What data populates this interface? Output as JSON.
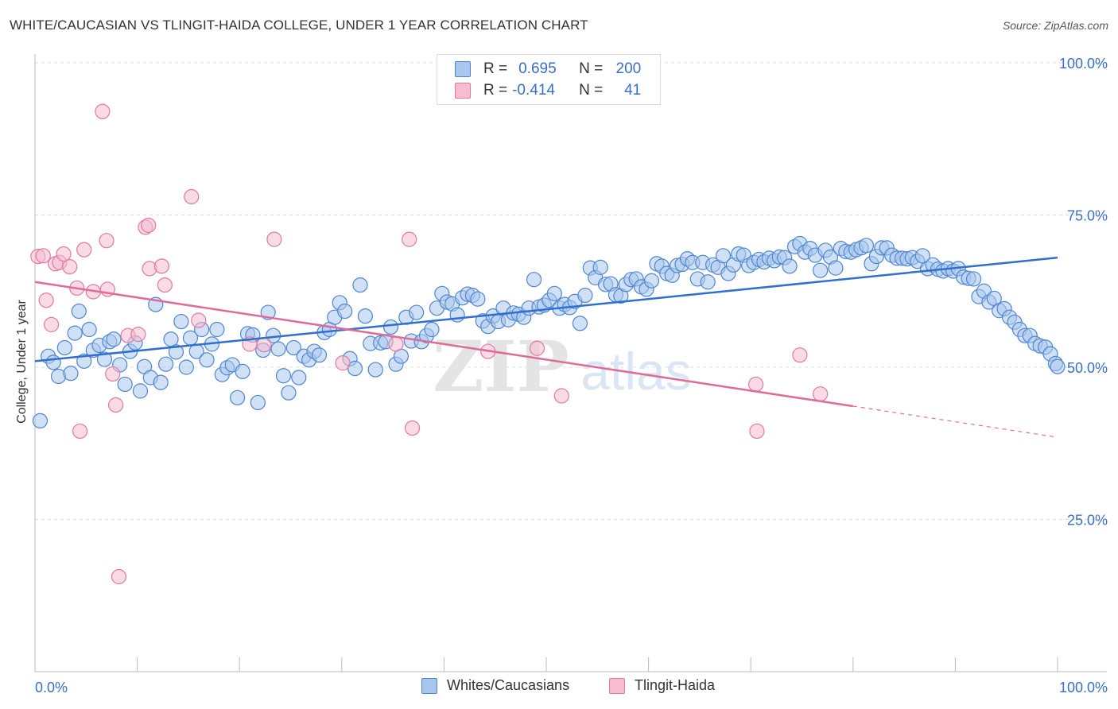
{
  "title": "WHITE/CAUCASIAN VS TLINGIT-HAIDA COLLEGE, UNDER 1 YEAR CORRELATION CHART",
  "source": "Source: ZipAtlas.com",
  "watermark": {
    "zip": "ZIP",
    "atlas": "atlas"
  },
  "legend": {
    "rows": [
      {
        "r_label": "R =",
        "r_value": "0.695",
        "n_label": "N =",
        "n_value": "200",
        "color": "#a9c6ec",
        "stroke": "#4f86cf"
      },
      {
        "r_label": "R =",
        "r_value": "-0.414",
        "n_label": "N =",
        "n_value": "41",
        "color": "#f6bcd0",
        "stroke": "#e07aa0"
      }
    ]
  },
  "bottom_legend": {
    "white": "Whites/Caucasians",
    "tlingit": "Tlingit-Haida"
  },
  "chart_data": {
    "type": "scatter",
    "title": "WHITE/CAUCASIAN VS TLINGIT-HAIDA COLLEGE, UNDER 1 YEAR CORRELATION CHART",
    "xlabel": "",
    "ylabel": "College, Under 1 year",
    "xlim": [
      0,
      100
    ],
    "ylim": [
      0,
      100
    ],
    "x_tick_labels": [
      "0.0%",
      "100.0%"
    ],
    "y_tick_labels": [
      "25.0%",
      "50.0%",
      "75.0%",
      "100.0%"
    ],
    "y_ticks": [
      25,
      50,
      75,
      100
    ],
    "grid": true,
    "legend_placement": "top-center",
    "series": [
      {
        "name": "Whites/Caucasians",
        "color": "#a9c6ec",
        "stroke": "#4f86cf",
        "trend": {
          "x": [
            0,
            100
          ],
          "y": [
            51,
            68
          ],
          "dashed_from": null
        },
        "points": [
          [
            0.5,
            41.2
          ],
          [
            1.3,
            51.8
          ],
          [
            1.8,
            50.8
          ],
          [
            2.3,
            48.5
          ],
          [
            2.9,
            53.2
          ],
          [
            3.5,
            49.0
          ],
          [
            3.9,
            55.6
          ],
          [
            4.3,
            59.2
          ],
          [
            4.8,
            51.0
          ],
          [
            5.3,
            56.2
          ],
          [
            5.7,
            52.8
          ],
          [
            6.3,
            53.6
          ],
          [
            6.8,
            51.3
          ],
          [
            7.3,
            54.2
          ],
          [
            7.7,
            54.6
          ],
          [
            8.3,
            50.4
          ],
          [
            8.8,
            47.2
          ],
          [
            9.3,
            52.6
          ],
          [
            9.8,
            54.0
          ],
          [
            10.3,
            46.1
          ],
          [
            10.7,
            50.1
          ],
          [
            11.3,
            48.3
          ],
          [
            11.8,
            60.3
          ],
          [
            12.3,
            47.5
          ],
          [
            12.8,
            50.5
          ],
          [
            13.3,
            54.6
          ],
          [
            13.8,
            52.5
          ],
          [
            14.3,
            57.5
          ],
          [
            14.8,
            50.0
          ],
          [
            15.2,
            54.8
          ],
          [
            15.8,
            52.6
          ],
          [
            16.3,
            56.2
          ],
          [
            16.8,
            51.2
          ],
          [
            17.3,
            53.8
          ],
          [
            17.8,
            56.2
          ],
          [
            18.3,
            48.8
          ],
          [
            18.8,
            49.9
          ],
          [
            19.3,
            50.4
          ],
          [
            19.8,
            45.0
          ],
          [
            20.3,
            49.3
          ],
          [
            20.8,
            55.5
          ],
          [
            21.3,
            55.3
          ],
          [
            21.8,
            44.2
          ],
          [
            22.3,
            52.8
          ],
          [
            22.8,
            59.0
          ],
          [
            23.3,
            55.2
          ],
          [
            23.8,
            53.0
          ],
          [
            24.3,
            48.6
          ],
          [
            24.8,
            45.8
          ],
          [
            25.3,
            53.2
          ],
          [
            25.8,
            48.3
          ],
          [
            26.3,
            51.8
          ],
          [
            26.8,
            51.2
          ],
          [
            27.3,
            52.6
          ],
          [
            27.8,
            52.0
          ],
          [
            28.3,
            55.7
          ],
          [
            28.8,
            56.2
          ],
          [
            29.3,
            58.2
          ],
          [
            29.8,
            60.6
          ],
          [
            30.3,
            59.2
          ],
          [
            30.8,
            51.4
          ],
          [
            31.3,
            49.8
          ],
          [
            31.8,
            63.5
          ],
          [
            32.3,
            58.4
          ],
          [
            32.8,
            53.9
          ],
          [
            33.3,
            49.6
          ],
          [
            33.8,
            54.0
          ],
          [
            34.3,
            54.2
          ],
          [
            34.8,
            56.6
          ],
          [
            35.3,
            50.5
          ],
          [
            35.8,
            51.8
          ],
          [
            36.3,
            58.2
          ],
          [
            36.8,
            54.3
          ],
          [
            37.3,
            59.0
          ],
          [
            37.8,
            54.2
          ],
          [
            38.3,
            55.2
          ],
          [
            38.8,
            56.2
          ],
          [
            39.3,
            59.7
          ],
          [
            39.8,
            62.1
          ],
          [
            40.3,
            60.7
          ],
          [
            40.8,
            60.4
          ],
          [
            41.3,
            58.6
          ],
          [
            41.8,
            61.4
          ],
          [
            42.3,
            62.0
          ],
          [
            42.8,
            61.8
          ],
          [
            43.3,
            61.2
          ],
          [
            43.8,
            57.6
          ],
          [
            44.3,
            56.7
          ],
          [
            44.8,
            58.4
          ],
          [
            45.3,
            57.5
          ],
          [
            45.8,
            59.7
          ],
          [
            46.3,
            57.8
          ],
          [
            46.8,
            58.9
          ],
          [
            47.3,
            58.7
          ],
          [
            47.8,
            58.2
          ],
          [
            48.3,
            59.7
          ],
          [
            48.8,
            64.4
          ],
          [
            49.3,
            59.9
          ],
          [
            49.8,
            60.2
          ],
          [
            50.3,
            61.0
          ],
          [
            50.8,
            62.1
          ],
          [
            51.3,
            59.7
          ],
          [
            51.8,
            60.3
          ],
          [
            52.3,
            59.8
          ],
          [
            52.8,
            60.8
          ],
          [
            53.3,
            57.2
          ],
          [
            53.8,
            61.8
          ],
          [
            54.3,
            66.3
          ],
          [
            54.8,
            64.7
          ],
          [
            55.3,
            66.4
          ],
          [
            55.8,
            63.6
          ],
          [
            56.3,
            63.7
          ],
          [
            56.8,
            61.9
          ],
          [
            57.3,
            61.7
          ],
          [
            57.8,
            63.6
          ],
          [
            58.3,
            64.4
          ],
          [
            58.8,
            64.5
          ],
          [
            59.3,
            63.2
          ],
          [
            59.8,
            62.8
          ],
          [
            60.3,
            64.2
          ],
          [
            60.8,
            67.0
          ],
          [
            61.3,
            66.6
          ],
          [
            61.8,
            65.4
          ],
          [
            62.3,
            65.1
          ],
          [
            62.8,
            66.7
          ],
          [
            63.3,
            66.9
          ],
          [
            63.8,
            67.8
          ],
          [
            64.3,
            67.2
          ],
          [
            64.8,
            64.5
          ],
          [
            65.3,
            67.2
          ],
          [
            65.8,
            64.0
          ],
          [
            66.3,
            66.8
          ],
          [
            66.8,
            66.4
          ],
          [
            67.3,
            68.3
          ],
          [
            67.8,
            65.4
          ],
          [
            68.3,
            66.8
          ],
          [
            68.8,
            68.6
          ],
          [
            69.3,
            68.4
          ],
          [
            69.8,
            66.7
          ],
          [
            70.3,
            67.2
          ],
          [
            70.8,
            67.7
          ],
          [
            71.3,
            67.3
          ],
          [
            71.8,
            67.9
          ],
          [
            72.3,
            67.5
          ],
          [
            72.8,
            68.1
          ],
          [
            73.3,
            68.0
          ],
          [
            73.8,
            66.6
          ],
          [
            74.3,
            69.8
          ],
          [
            74.8,
            70.3
          ],
          [
            75.3,
            68.9
          ],
          [
            75.8,
            69.5
          ],
          [
            76.3,
            68.4
          ],
          [
            76.8,
            65.9
          ],
          [
            77.3,
            69.2
          ],
          [
            77.8,
            68.1
          ],
          [
            78.3,
            66.3
          ],
          [
            78.8,
            69.5
          ],
          [
            79.3,
            69.0
          ],
          [
            79.8,
            68.9
          ],
          [
            80.3,
            69.3
          ],
          [
            80.8,
            69.6
          ],
          [
            81.3,
            70.0
          ],
          [
            81.8,
            67.0
          ],
          [
            82.3,
            68.2
          ],
          [
            82.8,
            69.6
          ],
          [
            83.3,
            69.6
          ],
          [
            83.8,
            68.4
          ],
          [
            84.3,
            67.9
          ],
          [
            84.8,
            67.9
          ],
          [
            85.3,
            67.8
          ],
          [
            85.8,
            68.0
          ],
          [
            86.3,
            67.4
          ],
          [
            86.8,
            68.3
          ],
          [
            87.3,
            66.2
          ],
          [
            87.8,
            66.8
          ],
          [
            88.3,
            66.1
          ],
          [
            88.8,
            65.8
          ],
          [
            89.3,
            66.2
          ],
          [
            89.8,
            65.8
          ],
          [
            90.3,
            66.2
          ],
          [
            90.8,
            64.8
          ],
          [
            91.3,
            64.6
          ],
          [
            91.8,
            64.5
          ],
          [
            92.3,
            61.6
          ],
          [
            92.8,
            62.5
          ],
          [
            93.3,
            60.7
          ],
          [
            93.8,
            61.3
          ],
          [
            94.3,
            59.3
          ],
          [
            94.8,
            59.6
          ],
          [
            95.3,
            58.2
          ],
          [
            95.8,
            57.4
          ],
          [
            96.3,
            56.2
          ],
          [
            96.8,
            55.2
          ],
          [
            97.3,
            55.2
          ],
          [
            97.8,
            53.9
          ],
          [
            98.3,
            53.5
          ],
          [
            98.8,
            53.3
          ],
          [
            99.3,
            52.2
          ],
          [
            99.8,
            50.6
          ],
          [
            100.0,
            50.1
          ]
        ]
      },
      {
        "name": "Tlingit-Haida",
        "color": "#f6bcd0",
        "stroke": "#e07aa0",
        "trend": {
          "x": [
            0,
            100
          ],
          "y": [
            64,
            38.5
          ],
          "dashed_from": 80
        },
        "points": [
          [
            0.3,
            68.2
          ],
          [
            0.8,
            68.3
          ],
          [
            1.1,
            61.0
          ],
          [
            1.6,
            57.0
          ],
          [
            2.0,
            67.0
          ],
          [
            2.4,
            67.2
          ],
          [
            2.8,
            68.6
          ],
          [
            3.4,
            66.5
          ],
          [
            4.1,
            63.0
          ],
          [
            4.4,
            39.5
          ],
          [
            4.8,
            69.3
          ],
          [
            5.7,
            62.4
          ],
          [
            6.6,
            92.0
          ],
          [
            7.0,
            70.8
          ],
          [
            7.1,
            62.8
          ],
          [
            7.6,
            48.9
          ],
          [
            7.9,
            43.8
          ],
          [
            8.2,
            15.6
          ],
          [
            9.1,
            55.2
          ],
          [
            10.1,
            55.4
          ],
          [
            10.8,
            73.0
          ],
          [
            11.1,
            73.3
          ],
          [
            11.2,
            66.2
          ],
          [
            12.4,
            66.6
          ],
          [
            12.7,
            63.5
          ],
          [
            15.3,
            78.0
          ],
          [
            16.0,
            57.7
          ],
          [
            21.0,
            53.8
          ],
          [
            22.4,
            53.7
          ],
          [
            23.4,
            71.0
          ],
          [
            30.1,
            50.7
          ],
          [
            35.3,
            53.8
          ],
          [
            36.6,
            71.0
          ],
          [
            36.9,
            40.0
          ],
          [
            44.3,
            52.6
          ],
          [
            49.1,
            53.1
          ],
          [
            51.5,
            45.3
          ],
          [
            70.5,
            47.2
          ],
          [
            70.6,
            39.5
          ],
          [
            74.8,
            52.0
          ],
          [
            76.8,
            45.6
          ]
        ]
      }
    ]
  }
}
